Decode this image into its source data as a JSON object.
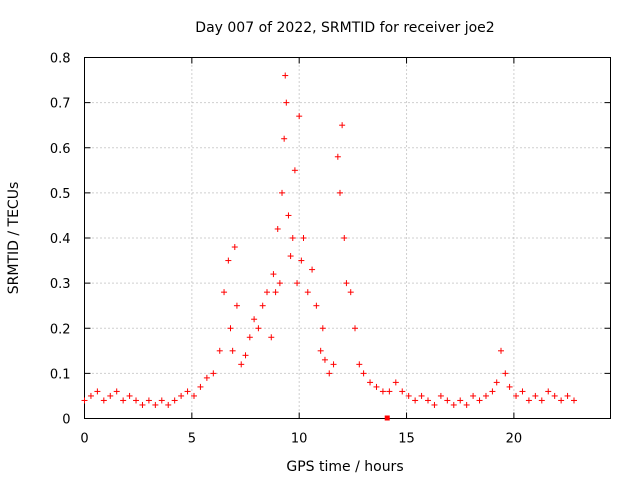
{
  "chart_data": {
    "type": "scatter",
    "title": "Day 007 of 2022, SRMTID for receiver joe2",
    "xlabel": "GPS time / hours",
    "ylabel": "SRMTID / TECUs",
    "xlim": [
      0,
      24.5
    ],
    "ylim": [
      0,
      0.8
    ],
    "x_ticks": [
      0,
      5,
      10,
      15,
      20
    ],
    "x_tick_labels": [
      "0",
      "5",
      "10",
      "15",
      "20"
    ],
    "y_ticks": [
      0,
      0.1,
      0.2,
      0.3,
      0.4,
      0.5,
      0.6,
      0.7,
      0.8
    ],
    "y_tick_labels": [
      "0",
      "0.1",
      "0.2",
      "0.3",
      "0.4",
      "0.5",
      "0.6",
      "0.7",
      "0.8"
    ],
    "grid": true,
    "marker": "+",
    "color": "#ff0000",
    "series": [
      {
        "name": "SRMTID",
        "x": [
          0.0,
          0.3,
          0.6,
          0.9,
          1.2,
          1.5,
          1.8,
          2.1,
          2.4,
          2.7,
          3.0,
          3.3,
          3.6,
          3.9,
          4.2,
          4.5,
          4.8,
          5.1,
          5.4,
          5.7,
          6.0,
          6.3,
          6.5,
          6.7,
          6.8,
          6.9,
          7.0,
          7.1,
          7.3,
          7.5,
          7.7,
          7.9,
          8.1,
          8.3,
          8.5,
          8.7,
          8.8,
          8.9,
          9.0,
          9.1,
          9.2,
          9.3,
          9.35,
          9.4,
          9.5,
          9.6,
          9.7,
          9.8,
          9.9,
          10.0,
          10.1,
          10.2,
          10.4,
          10.6,
          10.8,
          11.0,
          11.1,
          11.2,
          11.4,
          11.6,
          11.8,
          11.9,
          12.0,
          12.1,
          12.2,
          12.4,
          12.6,
          12.8,
          13.0,
          13.3,
          13.6,
          13.9,
          14.2,
          14.5,
          14.8,
          15.1,
          15.4,
          15.7,
          16.0,
          16.3,
          16.6,
          16.9,
          17.2,
          17.5,
          17.8,
          18.1,
          18.4,
          18.7,
          19.0,
          19.2,
          19.4,
          19.6,
          19.8,
          20.1,
          20.4,
          20.7,
          21.0,
          21.3,
          21.6,
          21.9,
          22.2,
          22.5,
          22.8
        ],
        "y": [
          0.04,
          0.05,
          0.06,
          0.04,
          0.05,
          0.06,
          0.04,
          0.05,
          0.04,
          0.03,
          0.04,
          0.03,
          0.04,
          0.03,
          0.04,
          0.05,
          0.06,
          0.05,
          0.07,
          0.09,
          0.1,
          0.15,
          0.28,
          0.35,
          0.2,
          0.15,
          0.38,
          0.25,
          0.12,
          0.14,
          0.18,
          0.22,
          0.2,
          0.25,
          0.28,
          0.18,
          0.32,
          0.28,
          0.42,
          0.3,
          0.5,
          0.62,
          0.76,
          0.7,
          0.45,
          0.36,
          0.4,
          0.55,
          0.3,
          0.67,
          0.35,
          0.4,
          0.28,
          0.33,
          0.25,
          0.15,
          0.2,
          0.13,
          0.1,
          0.12,
          0.58,
          0.5,
          0.65,
          0.4,
          0.3,
          0.28,
          0.2,
          0.12,
          0.1,
          0.08,
          0.07,
          0.06,
          0.06,
          0.08,
          0.06,
          0.05,
          0.04,
          0.05,
          0.04,
          0.03,
          0.05,
          0.04,
          0.03,
          0.04,
          0.03,
          0.05,
          0.04,
          0.05,
          0.06,
          0.08,
          0.15,
          0.1,
          0.07,
          0.05,
          0.06,
          0.04,
          0.05,
          0.04,
          0.06,
          0.05,
          0.04,
          0.05,
          0.04
        ]
      }
    ],
    "annotations": [
      {
        "x": 14.1,
        "y": 0.0,
        "marker": "square"
      }
    ]
  }
}
